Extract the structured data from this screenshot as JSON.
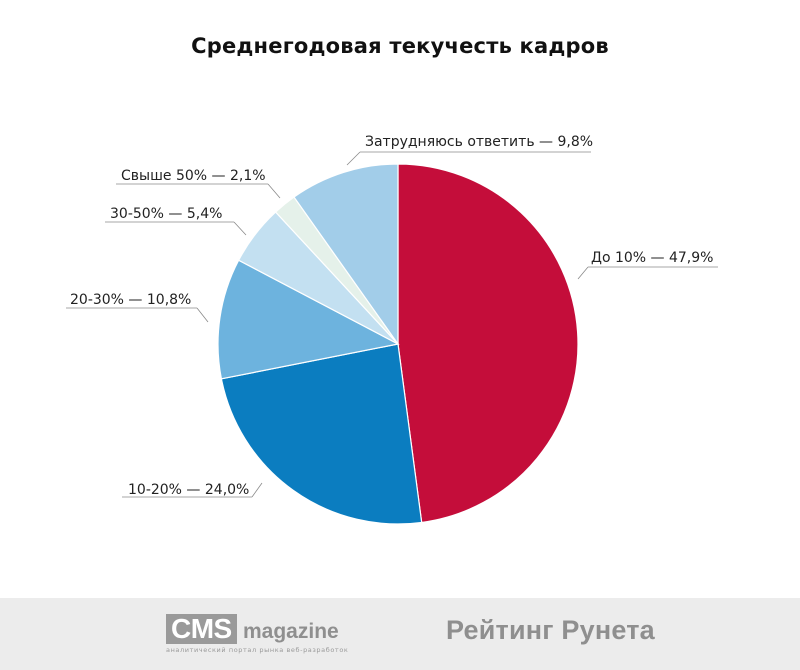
{
  "chart_data": {
    "type": "pie",
    "title": "Среднегодовая текучесть кадров",
    "slices": [
      {
        "label": "До 10% — 47,9%",
        "value": 47.9,
        "color": "#c40d3a"
      },
      {
        "label": "10-20% — 24,0%",
        "value": 24.0,
        "color": "#0b7dc0"
      },
      {
        "label": "20-30% — 10,8%",
        "value": 10.8,
        "color": "#6db3de"
      },
      {
        "label": "30-50% — 5,4%",
        "value": 5.4,
        "color": "#c3e0f1"
      },
      {
        "label": "Свыше 50% — 2,1%",
        "value": 2.1,
        "color": "#e5f1ea"
      },
      {
        "label": "Затрудняюсь ответить — 9,8%",
        "value": 9.8,
        "color": "#a2cde9"
      }
    ]
  },
  "footer": {
    "cms_logo": {
      "box": "CMS",
      "word": "magazine",
      "tagline": "аналитический портал рынка веб-разработок"
    },
    "rating_logo": "Рейтинг Рунета",
    "background": "#ececec"
  }
}
